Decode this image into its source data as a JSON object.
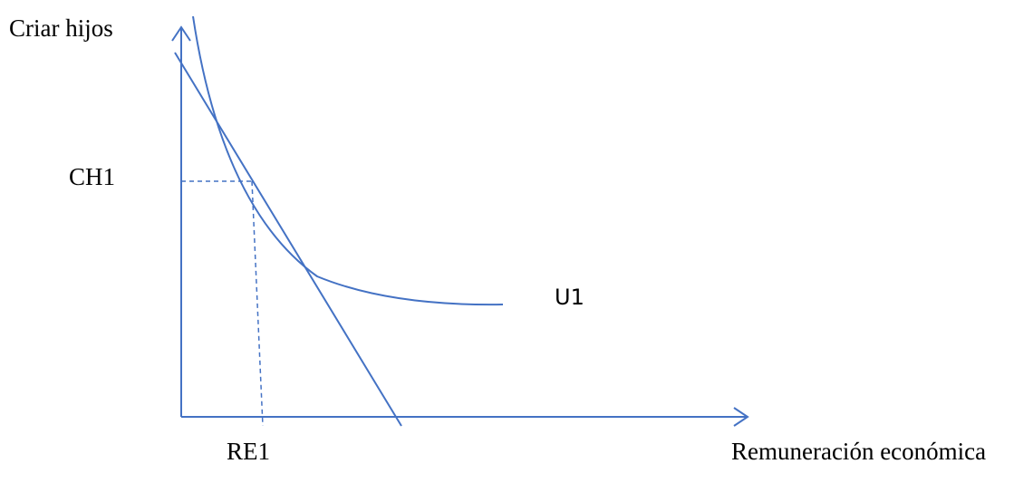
{
  "y_axis_label": "Criar hijos",
  "x_axis_label": "Remuneración económica",
  "y_tick_label": "CH1",
  "x_tick_label": "RE1",
  "curve_label": "U1",
  "line_color": "#4472c4"
}
